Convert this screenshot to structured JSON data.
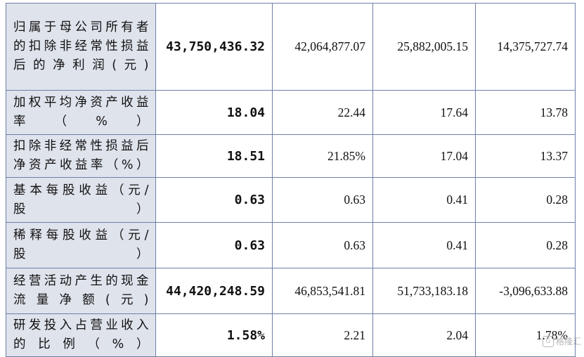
{
  "rows": [
    {
      "label": "归属于母公司所有者的扣除非经常性损益后的净利润(元)",
      "v1": "43,750,436.32",
      "v2": "42,064,877.07",
      "v3": "25,882,005.15",
      "v4": "14,375,727.74"
    },
    {
      "label": "加权平均净资产收益率（%）",
      "v1": "18.04",
      "v2": "22.44",
      "v3": "17.64",
      "v4": "13.78"
    },
    {
      "label": "扣除非经常性损益后净资产收益率（%）",
      "v1": "18.51",
      "v2": "21.85%",
      "v3": "17.04",
      "v4": "13.37"
    },
    {
      "label": "基本每股收益（元/股）",
      "v1": "0.63",
      "v2": "0.63",
      "v3": "0.41",
      "v4": "0.28"
    },
    {
      "label": "稀释每股收益（元/股）",
      "v1": "0.63",
      "v2": "0.63",
      "v3": "0.41",
      "v4": "0.28"
    },
    {
      "label": "经营活动产生的现金流量净额(元)",
      "v1": "44,420,248.59",
      "v2": "46,853,541.81",
      "v3": "51,733,183.18",
      "v4": "-3,096,633.88"
    },
    {
      "label": "研发投入占营业收入的比例（%）",
      "v1": "1.58%",
      "v2": "2.21",
      "v3": "2.04",
      "v4": "1.78%"
    }
  ],
  "watermark": {
    "text": "格隆汇",
    "icon": "gelonghui-logo-icon"
  }
}
